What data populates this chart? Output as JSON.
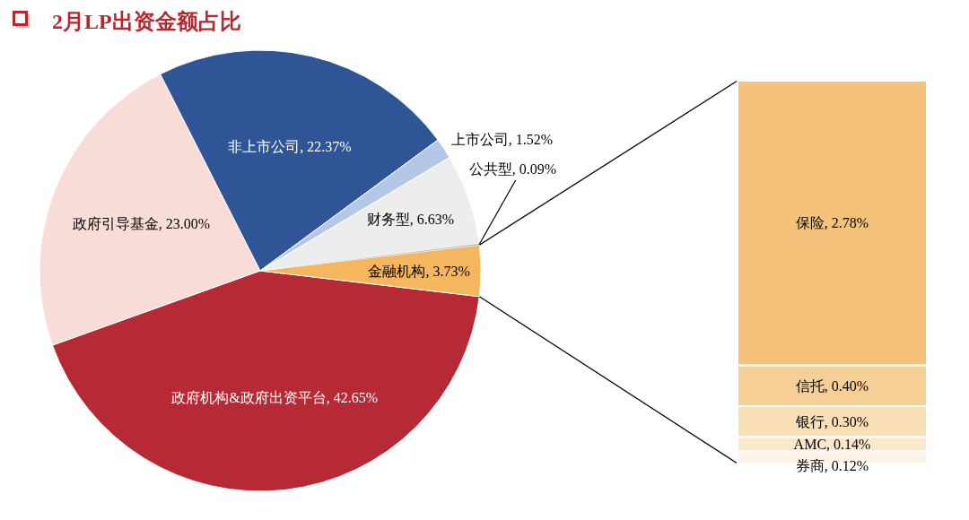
{
  "chart_data": [
    {
      "type": "pie",
      "title": "2月LP出资金额占比",
      "categories": [
        "政府机构&政府出资平台",
        "政府引导基金",
        "非上市公司",
        "上市公司",
        "财务型",
        "公共型",
        "金融机构"
      ],
      "values": [
        42.65,
        23.0,
        22.37,
        1.52,
        6.63,
        0.09,
        3.73
      ],
      "value_labels": [
        "42.65%",
        "23.00%",
        "22.37%",
        "1.52%",
        "6.63%",
        "0.09%",
        "3.73%"
      ],
      "colors": [
        "#b62a35",
        "#f8dcd8",
        "#2f5597",
        "#b4c7e7",
        "#ededed",
        "#bdbdbd",
        "#f4b65e"
      ]
    },
    {
      "type": "bar",
      "stacked": true,
      "categories": [
        null
      ],
      "series": [
        {
          "color": "#fcf3e6",
          "values": [
            0.12
          ],
          "value_labels": [
            "券商, 0.12%"
          ]
        },
        {
          "color": "#fae8cd",
          "values": [
            0.14
          ],
          "value_labels": [
            "AMC, 0.14%"
          ]
        },
        {
          "color": "#f8dfb5",
          "values": [
            0.3
          ],
          "value_labels": [
            "银行, 0.30%"
          ]
        },
        {
          "color": "#f6cf96",
          "values": [
            0.4
          ],
          "value_labels": [
            "信托, 0.40%"
          ]
        },
        {
          "color": "#f4c27a",
          "values": [
            2.78
          ],
          "value_labels": [
            "保险, 2.78%"
          ]
        }
      ]
    }
  ]
}
